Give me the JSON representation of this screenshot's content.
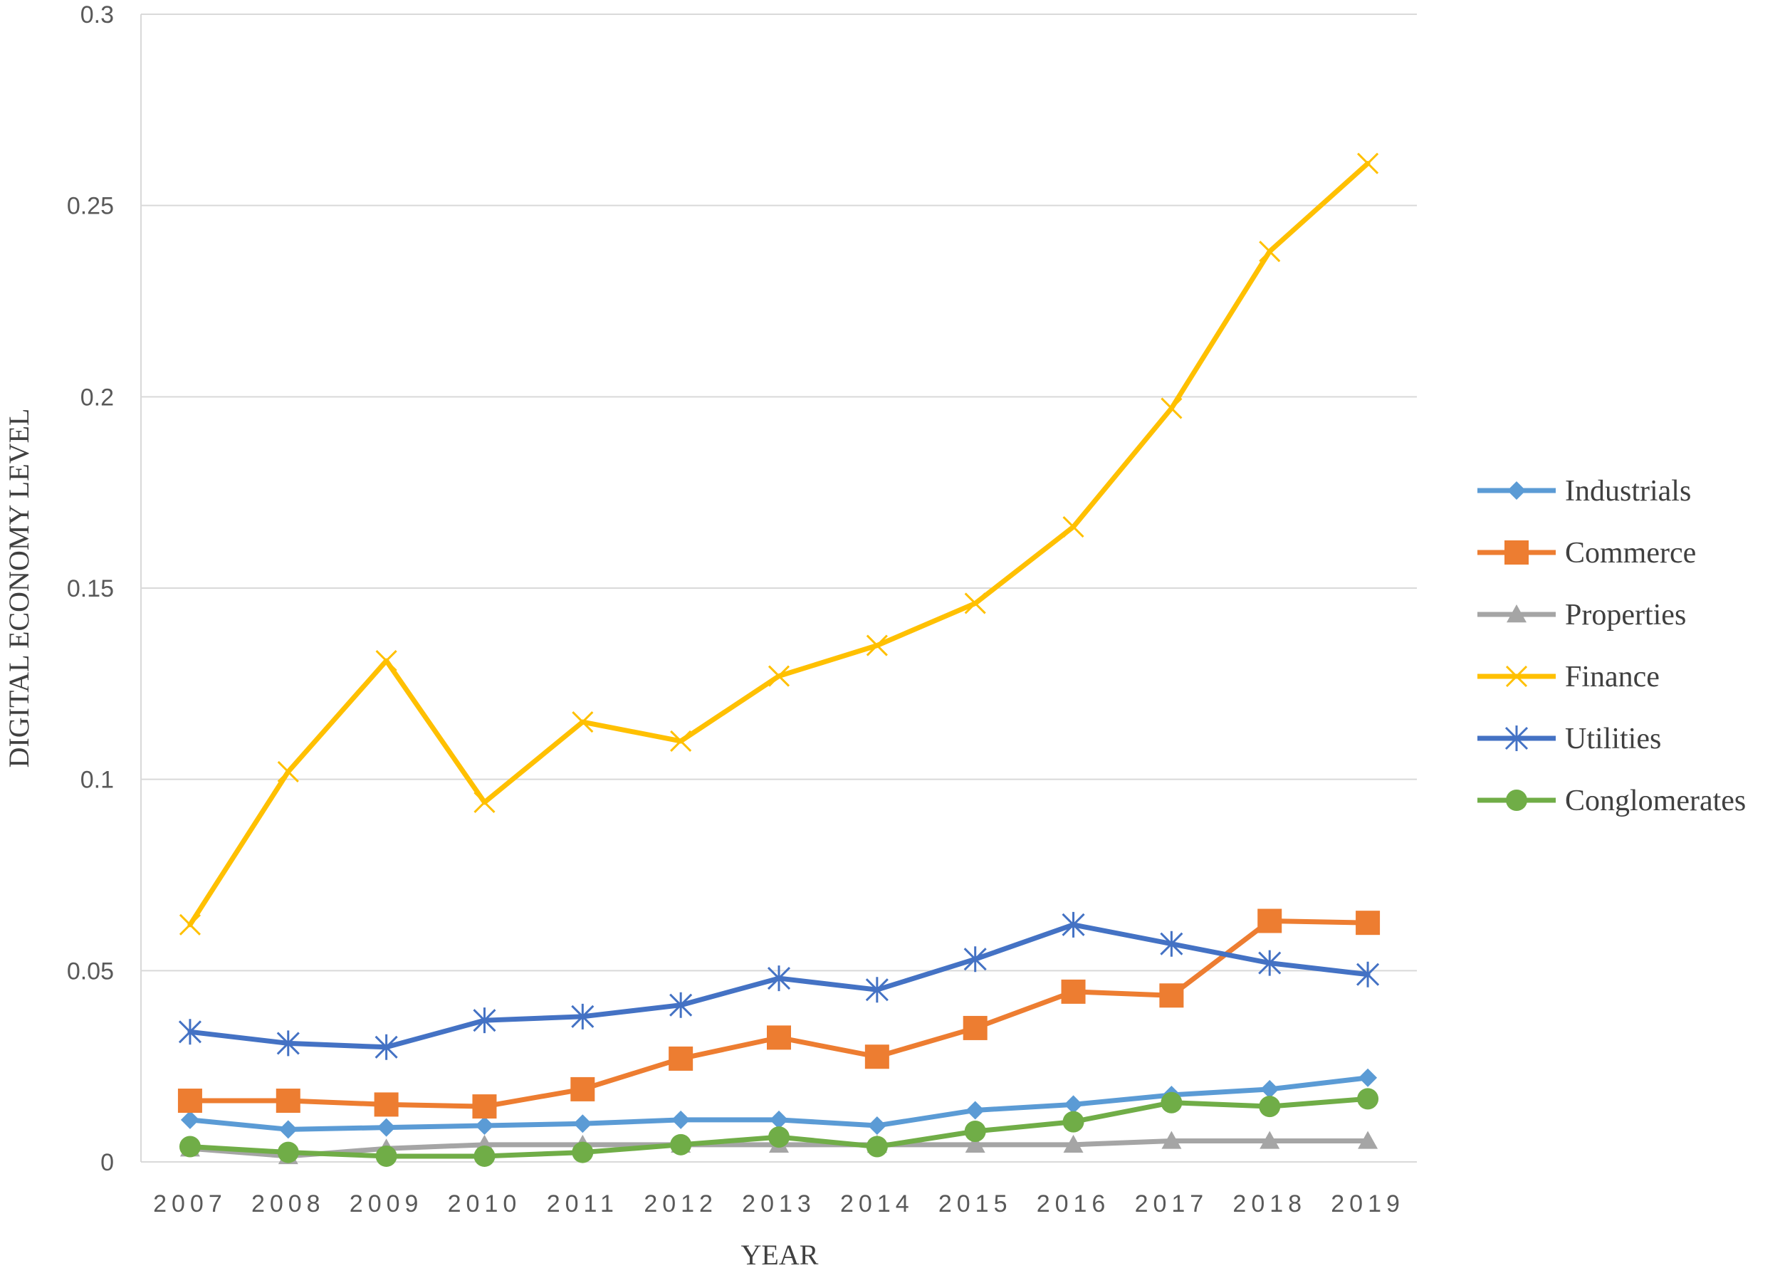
{
  "chart_data": {
    "type": "line",
    "xlabel": "YEAR",
    "ylabel": "DIGITAL ECONOMY LEVEL",
    "ylim": [
      0,
      0.3
    ],
    "yticks": [
      "0",
      "0.05",
      "0.1",
      "0.15",
      "0.2",
      "0.25",
      "0.3"
    ],
    "categories": [
      "2007",
      "2008",
      "2009",
      "2010",
      "2011",
      "2012",
      "2013",
      "2014",
      "2015",
      "2016",
      "2017",
      "2018",
      "2019"
    ],
    "grid": "horizontal",
    "legend_position": "right",
    "series": [
      {
        "name": "Industrials",
        "color": "#5B9BD5",
        "marker": "diamond",
        "values": [
          0.011,
          0.0085,
          0.009,
          0.0095,
          0.01,
          0.011,
          0.011,
          0.0095,
          0.0135,
          0.015,
          0.0175,
          0.019,
          0.022
        ]
      },
      {
        "name": "Commerce",
        "color": "#ED7D31",
        "marker": "square",
        "values": [
          0.016,
          0.016,
          0.015,
          0.0145,
          0.019,
          0.027,
          0.0325,
          0.0275,
          0.035,
          0.0445,
          0.0435,
          0.063,
          0.0625
        ]
      },
      {
        "name": "Properties",
        "color": "#A5A5A5",
        "marker": "triangle",
        "values": [
          0.0035,
          0.0015,
          0.0035,
          0.0045,
          0.0045,
          0.0045,
          0.0045,
          0.0045,
          0.0045,
          0.0045,
          0.0055,
          0.0055,
          0.0055
        ]
      },
      {
        "name": "Finance",
        "color": "#FFC000",
        "marker": "x",
        "values": [
          0.062,
          0.102,
          0.131,
          0.094,
          0.115,
          0.11,
          0.127,
          0.135,
          0.146,
          0.166,
          0.197,
          0.238,
          0.261
        ]
      },
      {
        "name": "Utilities",
        "color": "#4472C4",
        "marker": "star",
        "values": [
          0.034,
          0.031,
          0.03,
          0.037,
          0.038,
          0.041,
          0.048,
          0.045,
          0.053,
          0.062,
          0.057,
          0.052,
          0.049
        ]
      },
      {
        "name": "Conglomerates",
        "color": "#70AD47",
        "marker": "circle",
        "values": [
          0.004,
          0.0025,
          0.0015,
          0.0015,
          0.0025,
          0.0045,
          0.0065,
          0.004,
          0.008,
          0.0105,
          0.0155,
          0.0145,
          0.0165
        ]
      }
    ]
  }
}
